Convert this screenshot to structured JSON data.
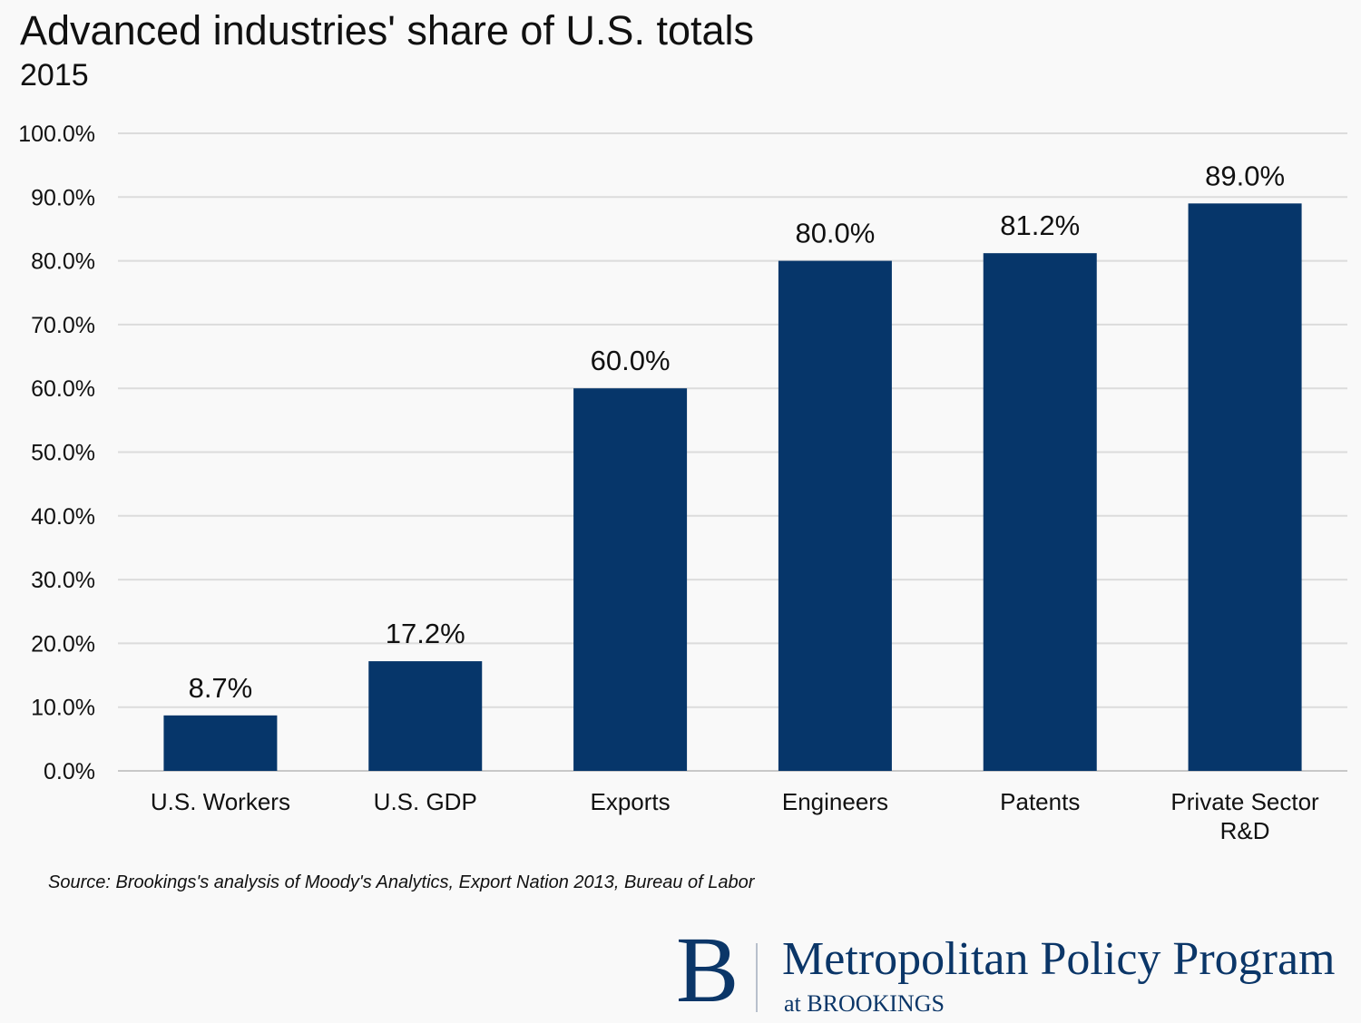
{
  "chart_data": {
    "type": "bar",
    "title": "Advanced industries' share of U.S. totals",
    "subtitle": "2015",
    "categories": [
      "U.S. Workers",
      "U.S. GDP",
      "Exports",
      "Engineers",
      "Patents",
      "Private Sector R&D"
    ],
    "category_lines": [
      [
        "U.S. Workers"
      ],
      [
        "U.S. GDP"
      ],
      [
        "Exports"
      ],
      [
        "Engineers"
      ],
      [
        "Patents"
      ],
      [
        "Private Sector",
        "R&D"
      ]
    ],
    "values": [
      8.7,
      17.2,
      60.0,
      80.0,
      81.2,
      89.0
    ],
    "data_labels": [
      "8.7%",
      "17.2%",
      "60.0%",
      "80.0%",
      "81.2%",
      "89.0%"
    ],
    "ylim": [
      0,
      100
    ],
    "yticks": [
      "0.0%",
      "10.0%",
      "20.0%",
      "30.0%",
      "40.0%",
      "50.0%",
      "60.0%",
      "70.0%",
      "80.0%",
      "90.0%",
      "100.0%"
    ],
    "xlabel": "",
    "ylabel": "",
    "grid": true,
    "bar_color": "#06366a"
  },
  "source": "Source: Brookings's analysis of Moody's Analytics, Export Nation 2013, Bureau of Labor",
  "logo": {
    "letter": "B",
    "name": "Metropolitan Policy Program",
    "sub": "at BROOKINGS"
  }
}
